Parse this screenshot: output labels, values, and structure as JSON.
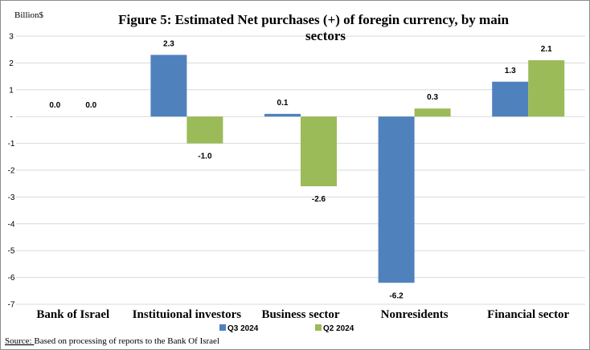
{
  "chart_data": {
    "type": "bar",
    "title_line1": "Figure 5:  Estimated Net purchases (+) of foregin currency, by main",
    "title_line2": "sectors",
    "unit_label": "Billion$",
    "categories": [
      "Bank of Israel",
      "Instituional investors",
      "Business sector",
      "Nonresidents",
      "Financial sector"
    ],
    "series": [
      {
        "name": "Q3 2024",
        "color": "#4f81bd",
        "values": [
          0.0,
          2.3,
          0.1,
          -6.2,
          1.3
        ],
        "labels": [
          "0.0",
          "2.3",
          "0.1",
          "-6.2",
          "1.3"
        ]
      },
      {
        "name": "Q2 2024",
        "color": "#9bbb59",
        "values": [
          0.0,
          -1.0,
          -2.6,
          0.3,
          2.1
        ],
        "labels": [
          "0.0",
          "-1.0",
          "-2.6",
          "0.3",
          "2.1"
        ]
      }
    ],
    "ylim": [
      -7,
      3
    ],
    "yticks": [
      3,
      2,
      1,
      0,
      -1,
      -2,
      -3,
      -4,
      -5,
      -6,
      -7
    ],
    "ytick_labels": [
      "3",
      "2",
      "1",
      "-",
      "-1",
      "-2",
      "-3",
      "-4",
      "-5",
      "-6",
      "-7"
    ],
    "grid": true,
    "legend_position": "bottom",
    "source_prefix": "Source: ",
    "source_text": "Based on processing of reports to the Bank Of Israel"
  }
}
